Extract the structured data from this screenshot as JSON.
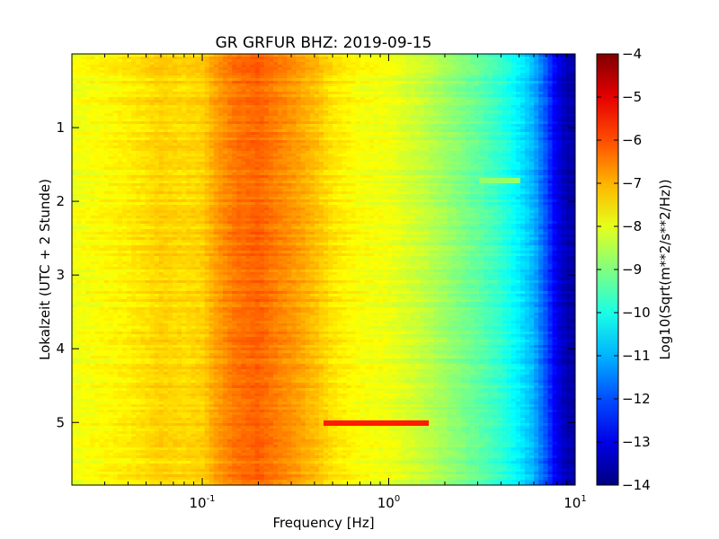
{
  "chart_data": {
    "type": "heatmap",
    "title": "GR GRFUR BHZ: 2019-09-15",
    "xlabel": "Frequency [Hz]",
    "ylabel": "Lokalzeit (UTC + 2 Stunde)",
    "x_scale": "log",
    "xlim": [
      0.02,
      10
    ],
    "ylim": [
      5.85,
      0
    ],
    "x_ticks": [
      {
        "value": 0.1,
        "base": "10",
        "exp": "-1"
      },
      {
        "value": 1,
        "base": "10",
        "exp": "0"
      },
      {
        "value": 10,
        "base": "10",
        "exp": "1"
      }
    ],
    "y_ticks": [
      {
        "value": 1,
        "label": "1"
      },
      {
        "value": 2,
        "label": "2"
      },
      {
        "value": 3,
        "label": "3"
      },
      {
        "value": 4,
        "label": "4"
      },
      {
        "value": 5,
        "label": "5"
      }
    ],
    "colorbar": {
      "label": "Log10(Sqrt(m**2/s**2/Hz))",
      "range": [
        -14,
        -4
      ],
      "colormap": "jet",
      "ticks": [
        {
          "value": -4,
          "label": "−4"
        },
        {
          "value": -5,
          "label": "−5"
        },
        {
          "value": -6,
          "label": "−6"
        },
        {
          "value": -7,
          "label": "−7"
        },
        {
          "value": -8,
          "label": "−8"
        },
        {
          "value": -9,
          "label": "−9"
        },
        {
          "value": -10,
          "label": "−10"
        },
        {
          "value": -11,
          "label": "−11"
        },
        {
          "value": -12,
          "label": "−12"
        },
        {
          "value": -13,
          "label": "−13"
        },
        {
          "value": -14,
          "label": "−14"
        }
      ]
    },
    "grid": false,
    "spectrum_profile": {
      "frequency_hz": [
        0.02,
        0.04,
        0.06,
        0.08,
        0.1,
        0.12,
        0.15,
        0.2,
        0.25,
        0.3,
        0.4,
        0.5,
        0.7,
        1.0,
        1.5,
        2.0,
        3.0,
        4.0,
        5.0,
        6.0,
        7.0,
        8.0,
        9.0,
        10.0
      ],
      "log10_amplitude": [
        -7.9,
        -7.6,
        -7.3,
        -7.4,
        -7.3,
        -6.8,
        -6.4,
        -6.2,
        -6.5,
        -6.7,
        -7.1,
        -7.5,
        -7.8,
        -7.9,
        -8.3,
        -8.7,
        -9.3,
        -9.8,
        -10.4,
        -11.0,
        -12.0,
        -13.0,
        -13.5,
        -13.6
      ]
    },
    "features": [
      {
        "time_h": 5.0,
        "f_min_hz": 0.45,
        "f_max_hz": 1.6,
        "log10_amplitude": -5.5
      },
      {
        "time_h": 1.73,
        "f_min_hz": 3.0,
        "f_max_hz": 5.0,
        "log10_amplitude": -8.8
      }
    ]
  }
}
